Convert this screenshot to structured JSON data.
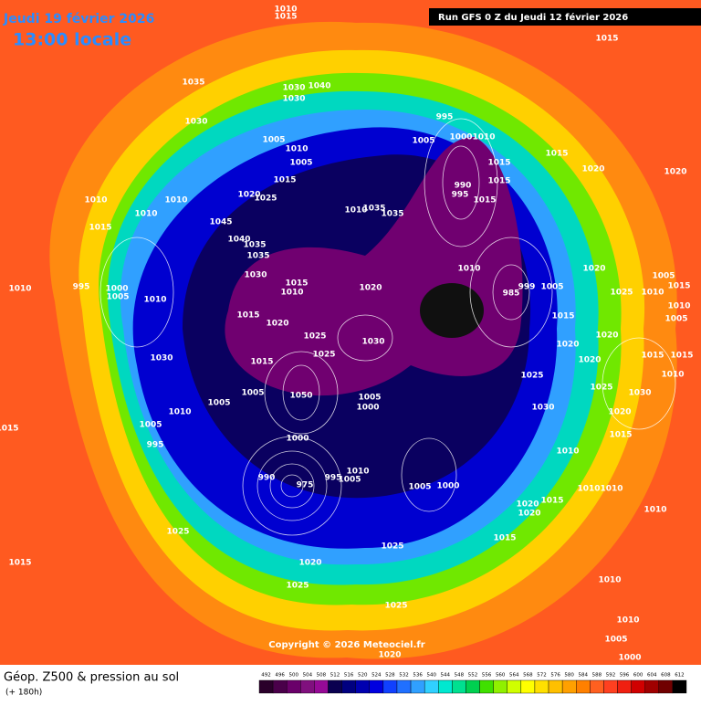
{
  "header": {
    "date": "Jeudi 19 février 2026",
    "time": "13:00 locale",
    "run": "Run GFS 0 Z du Jeudi 12 février 2026"
  },
  "copyright": "Copyright © 2026 Meteociel.fr",
  "footer": {
    "title": "Géop. Z500 & pression au sol",
    "lead": "(+ 180h)"
  },
  "scale": {
    "values": [
      492,
      496,
      500,
      504,
      508,
      512,
      516,
      520,
      524,
      528,
      532,
      536,
      540,
      544,
      548,
      552,
      556,
      560,
      564,
      568,
      572,
      576,
      580,
      584,
      588,
      592,
      596,
      600,
      604,
      608,
      612
    ],
    "colors": [
      "#2a002a",
      "#4a004a",
      "#6a006a",
      "#80107e",
      "#960a96",
      "#0a0050",
      "#000080",
      "#0000b0",
      "#0000e0",
      "#1040ff",
      "#2070ff",
      "#30a0ff",
      "#30d0ff",
      "#00e8d0",
      "#00e090",
      "#00d050",
      "#40e000",
      "#90f000",
      "#d0ff00",
      "#ffff00",
      "#ffe000",
      "#ffc000",
      "#ffa000",
      "#ff8000",
      "#ff6020",
      "#ff4020",
      "#f02010",
      "#d00000",
      "#a00000",
      "#700000",
      "#000000"
    ]
  },
  "pressure_labels": [
    1010,
    1015,
    1035,
    1030,
    1040,
    1030,
    1030,
    1005,
    1010,
    1005,
    1015,
    1010,
    1020,
    1025,
    1045,
    1040,
    1035,
    1035,
    1030,
    1015,
    1010,
    1015,
    1020,
    1025,
    1030,
    1025,
    1015,
    1005,
    1050,
    1005,
    1010,
    1000,
    1005,
    995,
    990,
    975,
    995,
    1005,
    1010,
    1005,
    1000,
    1025,
    1015,
    1020,
    1025,
    1025,
    1020,
    1015,
    1010,
    1015,
    1010,
    1010,
    995,
    1000,
    1005,
    1010,
    1030,
    1020,
    995,
    1005,
    1000,
    1010,
    990,
    995,
    1015,
    1015,
    1015,
    1010,
    1035,
    1035,
    1010,
    985,
    999,
    1005,
    1015,
    1020,
    1025,
    1030,
    1010,
    1010,
    1020,
    1015,
    1020,
    1015,
    1025,
    1005,
    1000,
    1015,
    1015,
    1020,
    1020,
    1020,
    1025,
    1010,
    1005,
    1015,
    1010,
    1005,
    1020,
    1020,
    1015,
    1015,
    1010,
    1025,
    1030,
    1020,
    1015,
    1010,
    1010,
    1010,
    1010,
    1005,
    1000
  ]
}
